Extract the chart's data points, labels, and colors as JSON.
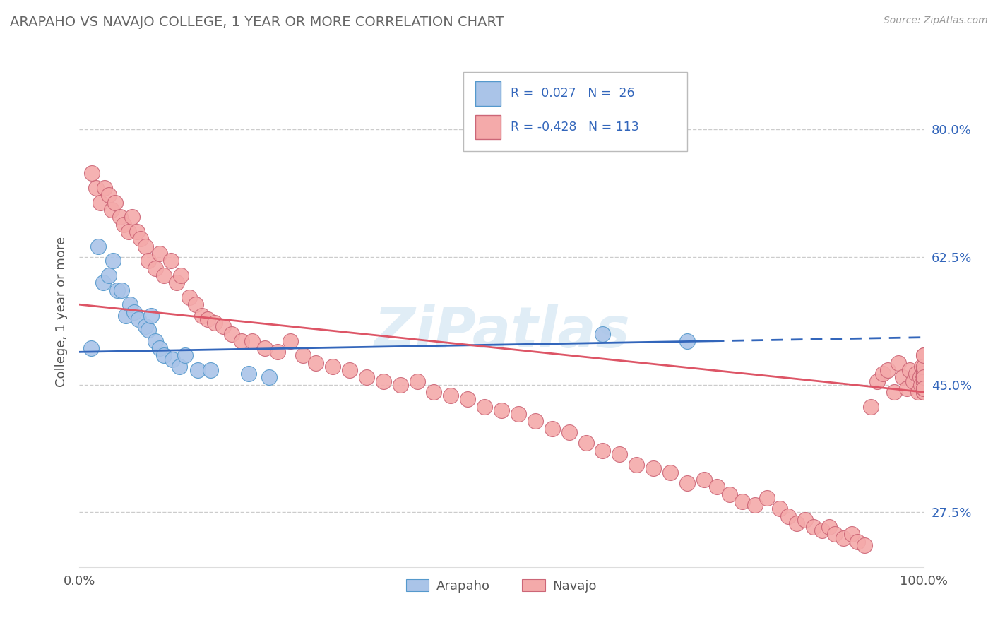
{
  "title": "ARAPAHO VS NAVAJO COLLEGE, 1 YEAR OR MORE CORRELATION CHART",
  "source_text": "Source: ZipAtlas.com",
  "ylabel": "College, 1 year or more",
  "xlim": [
    0.0,
    1.0
  ],
  "ylim": [
    0.2,
    0.9
  ],
  "y_ticks": [
    0.275,
    0.45,
    0.625,
    0.8
  ],
  "y_tick_labels": [
    "27.5%",
    "45.0%",
    "62.5%",
    "80.0%"
  ],
  "grid_color": "#cccccc",
  "background_color": "#ffffff",
  "arapaho_fill_color": "#aac4e8",
  "arapaho_edge_color": "#5599cc",
  "navajo_fill_color": "#f4aaaa",
  "navajo_edge_color": "#cc6677",
  "arapaho_line_color": "#3366bb",
  "navajo_line_color": "#dd5566",
  "legend_R_arapaho": "0.027",
  "legend_N_arapaho": "26",
  "legend_R_navajo": "-0.428",
  "legend_N_navajo": "113",
  "watermark": "ZiPatlas",
  "arapaho_x": [
    0.014,
    0.022,
    0.028,
    0.035,
    0.04,
    0.045,
    0.05,
    0.055,
    0.06,
    0.065,
    0.07,
    0.078,
    0.082,
    0.085,
    0.09,
    0.095,
    0.1,
    0.11,
    0.118,
    0.125,
    0.14,
    0.155,
    0.2,
    0.225,
    0.62,
    0.72
  ],
  "arapaho_y": [
    0.5,
    0.64,
    0.59,
    0.6,
    0.62,
    0.58,
    0.58,
    0.545,
    0.56,
    0.55,
    0.54,
    0.53,
    0.525,
    0.545,
    0.51,
    0.5,
    0.49,
    0.485,
    0.475,
    0.49,
    0.47,
    0.47,
    0.465,
    0.46,
    0.52,
    0.51
  ],
  "navajo_x": [
    0.015,
    0.02,
    0.025,
    0.03,
    0.035,
    0.038,
    0.042,
    0.048,
    0.052,
    0.058,
    0.062,
    0.068,
    0.072,
    0.078,
    0.082,
    0.09,
    0.095,
    0.1,
    0.108,
    0.115,
    0.12,
    0.13,
    0.138,
    0.145,
    0.152,
    0.16,
    0.17,
    0.18,
    0.192,
    0.205,
    0.22,
    0.235,
    0.25,
    0.265,
    0.28,
    0.3,
    0.32,
    0.34,
    0.36,
    0.38,
    0.4,
    0.42,
    0.44,
    0.46,
    0.48,
    0.5,
    0.52,
    0.54,
    0.56,
    0.58,
    0.6,
    0.62,
    0.64,
    0.66,
    0.68,
    0.7,
    0.72,
    0.74,
    0.755,
    0.77,
    0.785,
    0.8,
    0.815,
    0.83,
    0.84,
    0.85,
    0.86,
    0.87,
    0.88,
    0.888,
    0.895,
    0.905,
    0.915,
    0.922,
    0.93,
    0.938,
    0.945,
    0.952,
    0.958,
    0.965,
    0.97,
    0.975,
    0.98,
    0.984,
    0.988,
    0.991,
    0.994,
    0.996,
    0.997,
    0.998,
    0.999,
    1.0,
    1.0,
    1.0,
    1.0,
    1.0,
    1.0,
    1.0,
    1.0,
    1.0,
    1.0,
    1.0,
    1.0,
    1.0,
    1.0,
    1.0,
    1.0,
    1.0,
    1.0,
    1.0,
    1.0,
    1.0,
    1.0
  ],
  "navajo_y": [
    0.74,
    0.72,
    0.7,
    0.72,
    0.71,
    0.69,
    0.7,
    0.68,
    0.67,
    0.66,
    0.68,
    0.66,
    0.65,
    0.64,
    0.62,
    0.61,
    0.63,
    0.6,
    0.62,
    0.59,
    0.6,
    0.57,
    0.56,
    0.545,
    0.54,
    0.535,
    0.53,
    0.52,
    0.51,
    0.51,
    0.5,
    0.495,
    0.51,
    0.49,
    0.48,
    0.475,
    0.47,
    0.46,
    0.455,
    0.45,
    0.455,
    0.44,
    0.435,
    0.43,
    0.42,
    0.415,
    0.41,
    0.4,
    0.39,
    0.385,
    0.37,
    0.36,
    0.355,
    0.34,
    0.335,
    0.33,
    0.315,
    0.32,
    0.31,
    0.3,
    0.29,
    0.285,
    0.295,
    0.28,
    0.27,
    0.26,
    0.265,
    0.255,
    0.25,
    0.255,
    0.245,
    0.24,
    0.245,
    0.235,
    0.23,
    0.42,
    0.455,
    0.465,
    0.47,
    0.44,
    0.48,
    0.46,
    0.445,
    0.47,
    0.455,
    0.465,
    0.44,
    0.46,
    0.45,
    0.475,
    0.465,
    0.49,
    0.47,
    0.46,
    0.445,
    0.465,
    0.455,
    0.44,
    0.465,
    0.455,
    0.475,
    0.46,
    0.445,
    0.47,
    0.455,
    0.44,
    0.465,
    0.455,
    0.445,
    0.475,
    0.49,
    0.46,
    0.445
  ]
}
